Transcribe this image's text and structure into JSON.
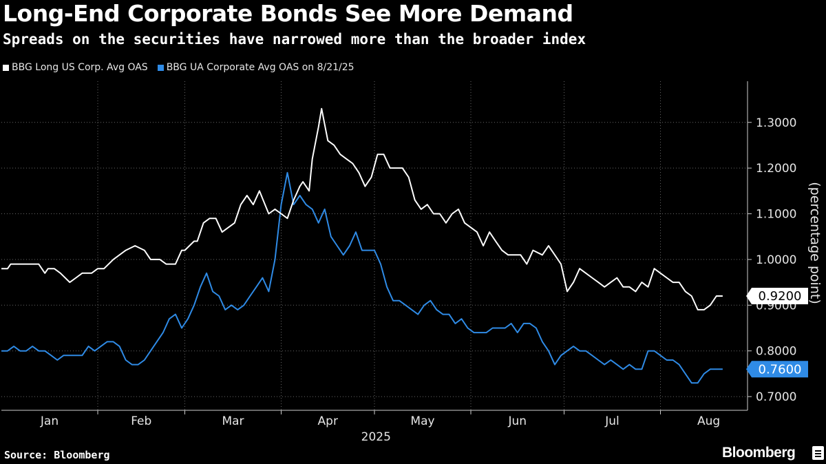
{
  "header": {
    "title": "Long-End Corporate Bonds See More Demand",
    "subtitle": "Spreads on the securities have narrowed more than the broader index"
  },
  "footer": {
    "source": "Source: Bloomberg",
    "brand": "Bloomberg"
  },
  "chart_data": {
    "type": "line",
    "ylabel": "(percentage point)",
    "xlabel": "2025",
    "ylim": [
      0.67,
      1.39
    ],
    "yticks": [
      0.7,
      0.8,
      0.9,
      1.0,
      1.1,
      1.2,
      1.3
    ],
    "ytick_labels": [
      "0.7000",
      "0.8000",
      "0.9000",
      "1.0000",
      "1.1000",
      "1.2000",
      "1.3000"
    ],
    "x_range": [
      "2025-01-01",
      "2025-08-29"
    ],
    "month_labels": [
      "Jan",
      "Feb",
      "Mar",
      "Apr",
      "May",
      "Jun",
      "Jul",
      "Aug"
    ],
    "month_starts": [
      "2025-01-01",
      "2025-02-01",
      "2025-03-01",
      "2025-04-01",
      "2025-05-01",
      "2025-06-01",
      "2025-07-01",
      "2025-08-01"
    ],
    "grid": true,
    "legend_position": "top-left",
    "series": [
      {
        "name": "BBG Long US Corp. Avg OAS",
        "color": "#ffffff",
        "last_label": "0.9200",
        "x": [
          "2025-01-01",
          "2025-01-03",
          "2025-01-04",
          "2025-01-06",
          "2025-01-09",
          "2025-01-13",
          "2025-01-15",
          "2025-01-16",
          "2025-01-18",
          "2025-01-20",
          "2025-01-23",
          "2025-01-25",
          "2025-01-27",
          "2025-01-30",
          "2025-02-01",
          "2025-02-03",
          "2025-02-06",
          "2025-02-10",
          "2025-02-13",
          "2025-02-16",
          "2025-02-18",
          "2025-02-21",
          "2025-02-23",
          "2025-02-26",
          "2025-02-28",
          "2025-03-01",
          "2025-03-04",
          "2025-03-05",
          "2025-03-07",
          "2025-03-09",
          "2025-03-11",
          "2025-03-13",
          "2025-03-15",
          "2025-03-17",
          "2025-03-19",
          "2025-03-21",
          "2025-03-23",
          "2025-03-25",
          "2025-03-28",
          "2025-03-30",
          "2025-04-01",
          "2025-04-03",
          "2025-04-05",
          "2025-04-07",
          "2025-04-08",
          "2025-04-10",
          "2025-04-11",
          "2025-04-13",
          "2025-04-14",
          "2025-04-16",
          "2025-04-18",
          "2025-04-20",
          "2025-04-22",
          "2025-04-24",
          "2025-04-26",
          "2025-04-28",
          "2025-04-30",
          "2025-05-02",
          "2025-05-04",
          "2025-05-06",
          "2025-05-08",
          "2025-05-10",
          "2025-05-12",
          "2025-05-14",
          "2025-05-16",
          "2025-05-18",
          "2025-05-20",
          "2025-05-22",
          "2025-05-24",
          "2025-05-26",
          "2025-05-28",
          "2025-05-30",
          "2025-06-01",
          "2025-06-03",
          "2025-06-05",
          "2025-06-07",
          "2025-06-09",
          "2025-06-11",
          "2025-06-13",
          "2025-06-15",
          "2025-06-17",
          "2025-06-19",
          "2025-06-21",
          "2025-06-24",
          "2025-06-26",
          "2025-06-28",
          "2025-06-30",
          "2025-07-02",
          "2025-07-04",
          "2025-07-06",
          "2025-07-08",
          "2025-07-10",
          "2025-07-12",
          "2025-07-14",
          "2025-07-16",
          "2025-07-18",
          "2025-07-20",
          "2025-07-22",
          "2025-07-24",
          "2025-07-26",
          "2025-07-28",
          "2025-07-30",
          "2025-08-01",
          "2025-08-03",
          "2025-08-05",
          "2025-08-07",
          "2025-08-09",
          "2025-08-11",
          "2025-08-13",
          "2025-08-15",
          "2025-08-17",
          "2025-08-19",
          "2025-08-21"
        ],
        "y": [
          0.98,
          0.98,
          0.99,
          0.99,
          0.99,
          0.99,
          0.97,
          0.98,
          0.98,
          0.97,
          0.95,
          0.96,
          0.97,
          0.97,
          0.98,
          0.98,
          1.0,
          1.02,
          1.03,
          1.02,
          1.0,
          1.0,
          0.99,
          0.99,
          1.02,
          1.02,
          1.04,
          1.04,
          1.08,
          1.09,
          1.09,
          1.06,
          1.07,
          1.08,
          1.12,
          1.14,
          1.12,
          1.15,
          1.1,
          1.11,
          1.1,
          1.09,
          1.13,
          1.16,
          1.17,
          1.15,
          1.22,
          1.29,
          1.33,
          1.26,
          1.25,
          1.23,
          1.22,
          1.21,
          1.19,
          1.16,
          1.18,
          1.23,
          1.23,
          1.2,
          1.2,
          1.2,
          1.18,
          1.13,
          1.11,
          1.12,
          1.1,
          1.1,
          1.08,
          1.1,
          1.11,
          1.08,
          1.07,
          1.06,
          1.03,
          1.06,
          1.04,
          1.02,
          1.01,
          1.01,
          1.01,
          0.99,
          1.02,
          1.01,
          1.03,
          1.01,
          0.99,
          0.93,
          0.95,
          0.98,
          0.97,
          0.96,
          0.95,
          0.94,
          0.95,
          0.96,
          0.94,
          0.94,
          0.93,
          0.95,
          0.94,
          0.98,
          0.97,
          0.96,
          0.95,
          0.95,
          0.93,
          0.92,
          0.89,
          0.89,
          0.9,
          0.92,
          0.92
        ]
      },
      {
        "name": "BBG UA Corporate Avg OAS on 8/21/25",
        "color": "#2f8be6",
        "last_label": "0.7600",
        "x": [
          "2025-01-01",
          "2025-01-03",
          "2025-01-05",
          "2025-01-07",
          "2025-01-09",
          "2025-01-11",
          "2025-01-13",
          "2025-01-15",
          "2025-01-17",
          "2025-01-19",
          "2025-01-21",
          "2025-01-23",
          "2025-01-25",
          "2025-01-27",
          "2025-01-29",
          "2025-01-31",
          "2025-02-02",
          "2025-02-04",
          "2025-02-06",
          "2025-02-08",
          "2025-02-10",
          "2025-02-12",
          "2025-02-14",
          "2025-02-16",
          "2025-02-18",
          "2025-02-20",
          "2025-02-22",
          "2025-02-24",
          "2025-02-26",
          "2025-02-28",
          "2025-03-02",
          "2025-03-04",
          "2025-03-06",
          "2025-03-08",
          "2025-03-10",
          "2025-03-12",
          "2025-03-14",
          "2025-03-16",
          "2025-03-18",
          "2025-03-20",
          "2025-03-22",
          "2025-03-24",
          "2025-03-26",
          "2025-03-28",
          "2025-03-30",
          "2025-04-01",
          "2025-04-03",
          "2025-04-05",
          "2025-04-07",
          "2025-04-09",
          "2025-04-11",
          "2025-04-13",
          "2025-04-15",
          "2025-04-17",
          "2025-04-19",
          "2025-04-21",
          "2025-04-23",
          "2025-04-25",
          "2025-04-27",
          "2025-04-29",
          "2025-05-01",
          "2025-05-03",
          "2025-05-05",
          "2025-05-07",
          "2025-05-09",
          "2025-05-11",
          "2025-05-13",
          "2025-05-15",
          "2025-05-17",
          "2025-05-19",
          "2025-05-21",
          "2025-05-23",
          "2025-05-25",
          "2025-05-27",
          "2025-05-29",
          "2025-05-31",
          "2025-06-02",
          "2025-06-04",
          "2025-06-06",
          "2025-06-08",
          "2025-06-10",
          "2025-06-12",
          "2025-06-14",
          "2025-06-16",
          "2025-06-18",
          "2025-06-20",
          "2025-06-22",
          "2025-06-24",
          "2025-06-26",
          "2025-06-28",
          "2025-06-30",
          "2025-07-02",
          "2025-07-04",
          "2025-07-06",
          "2025-07-08",
          "2025-07-10",
          "2025-07-12",
          "2025-07-14",
          "2025-07-16",
          "2025-07-18",
          "2025-07-20",
          "2025-07-22",
          "2025-07-24",
          "2025-07-26",
          "2025-07-28",
          "2025-07-30",
          "2025-08-01",
          "2025-08-03",
          "2025-08-05",
          "2025-08-07",
          "2025-08-09",
          "2025-08-11",
          "2025-08-13",
          "2025-08-15",
          "2025-08-17",
          "2025-08-19",
          "2025-08-21"
        ],
        "y": [
          0.8,
          0.8,
          0.81,
          0.8,
          0.8,
          0.81,
          0.8,
          0.8,
          0.79,
          0.78,
          0.79,
          0.79,
          0.79,
          0.79,
          0.81,
          0.8,
          0.81,
          0.82,
          0.82,
          0.81,
          0.78,
          0.77,
          0.77,
          0.78,
          0.8,
          0.82,
          0.84,
          0.87,
          0.88,
          0.85,
          0.87,
          0.9,
          0.94,
          0.97,
          0.93,
          0.92,
          0.89,
          0.9,
          0.89,
          0.9,
          0.92,
          0.94,
          0.96,
          0.93,
          1.0,
          1.12,
          1.19,
          1.12,
          1.14,
          1.12,
          1.11,
          1.08,
          1.11,
          1.05,
          1.03,
          1.01,
          1.03,
          1.06,
          1.02,
          1.02,
          1.02,
          0.99,
          0.94,
          0.91,
          0.91,
          0.9,
          0.89,
          0.88,
          0.9,
          0.91,
          0.89,
          0.88,
          0.88,
          0.86,
          0.87,
          0.85,
          0.84,
          0.84,
          0.84,
          0.85,
          0.85,
          0.85,
          0.86,
          0.84,
          0.86,
          0.86,
          0.85,
          0.82,
          0.8,
          0.77,
          0.79,
          0.8,
          0.81,
          0.8,
          0.8,
          0.79,
          0.78,
          0.77,
          0.78,
          0.77,
          0.76,
          0.77,
          0.76,
          0.76,
          0.8,
          0.8,
          0.79,
          0.78,
          0.78,
          0.77,
          0.75,
          0.73,
          0.73,
          0.75,
          0.76,
          0.76,
          0.76
        ]
      }
    ]
  }
}
